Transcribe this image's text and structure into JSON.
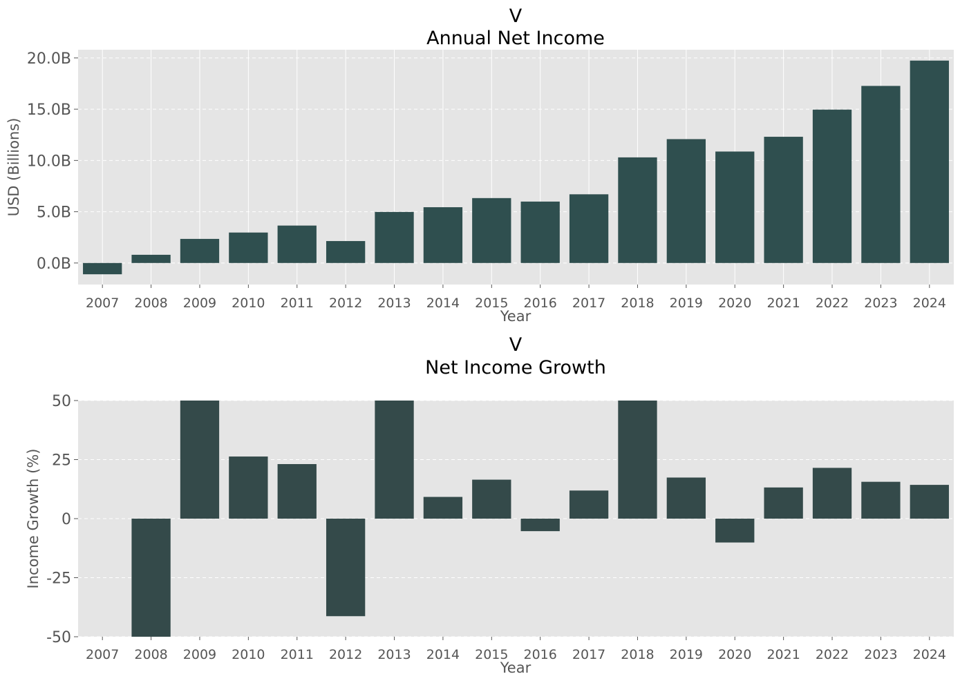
{
  "chart_data": [
    {
      "type": "bar",
      "title": "V",
      "subtitle": "Annual Net Income",
      "xlabel": "Year",
      "ylabel": "USD (Billions)",
      "categories": [
        "2007",
        "2008",
        "2009",
        "2010",
        "2011",
        "2012",
        "2013",
        "2014",
        "2015",
        "2016",
        "2017",
        "2018",
        "2019",
        "2020",
        "2021",
        "2022",
        "2023",
        "2024"
      ],
      "values": [
        -1.1,
        0.8,
        2.35,
        2.97,
        3.65,
        2.14,
        4.98,
        5.44,
        6.33,
        5.99,
        6.7,
        10.3,
        12.08,
        10.87,
        12.31,
        14.96,
        17.27,
        19.74
      ],
      "ylim": [
        -2.1,
        20.8
      ],
      "yticks": [
        0,
        5,
        10,
        15,
        20
      ],
      "ytick_labels": [
        "0.0B",
        "5.0B",
        "10.0B",
        "15.0B",
        "20.0B"
      ],
      "grid": true,
      "bar_color": "#2f4f4f"
    },
    {
      "type": "bar",
      "title": "V",
      "subtitle": "Net Income Growth",
      "xlabel": "Year",
      "ylabel": "Income Growth (%)",
      "categories": [
        "2007",
        "2008",
        "2009",
        "2010",
        "2011",
        "2012",
        "2013",
        "2014",
        "2015",
        "2016",
        "2017",
        "2018",
        "2019",
        "2020",
        "2021",
        "2022",
        "2023",
        "2024"
      ],
      "values": [
        null,
        -50,
        50,
        26.3,
        23.1,
        -41.3,
        50,
        9.2,
        16.5,
        -5.3,
        11.9,
        50,
        17.4,
        -10.1,
        13.2,
        21.5,
        15.6,
        14.3
      ],
      "ylim": [
        -50,
        50
      ],
      "yticks": [
        -50,
        -25,
        0,
        25,
        50
      ],
      "ytick_labels": [
        "-50",
        "-25",
        "0",
        "25",
        "50"
      ],
      "grid": true,
      "bar_color": "#2f4f4f"
    }
  ]
}
